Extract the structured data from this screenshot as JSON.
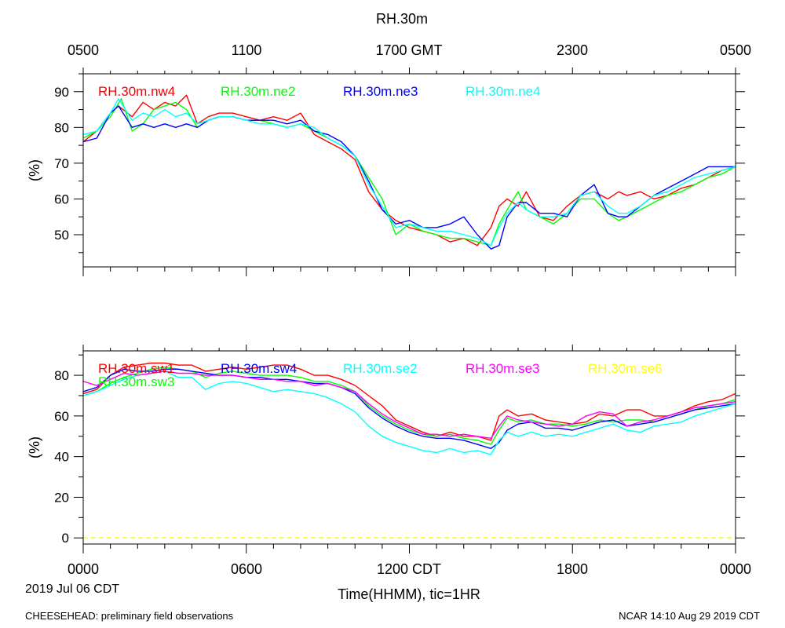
{
  "figure": {
    "title": "RH.30m",
    "bottom_axis_title": "Time(HHMM), tic=1HR",
    "date_label": "2019 Jul 06 CDT",
    "footer_left": "CHEESEHEAD: preliminary field observations",
    "footer_right": "NCAR 14:10 Aug 29 2019 CDT",
    "top_ticks": [
      "0500",
      "1100",
      "1700 GMT",
      "2300",
      "0500"
    ],
    "bottom_ticks": [
      "0000",
      "0600",
      "1200 CDT",
      "1800",
      "0000"
    ]
  },
  "chart_data": [
    {
      "type": "line",
      "title": "RH.30m",
      "ylabel": "(%)",
      "xlabel": "Time(HHMM), tic=1HR",
      "xlim": [
        0,
        24
      ],
      "ylim": [
        41,
        95
      ],
      "yticks": [
        50,
        60,
        70,
        80,
        90
      ],
      "series": [
        {
          "name": "RH.30m.nw4",
          "color": "#ff0000",
          "x": [
            0,
            0.5,
            1,
            1.3,
            1.8,
            2.2,
            2.6,
            3,
            3.4,
            3.8,
            4.2,
            4.6,
            5,
            5.5,
            6,
            6.5,
            7,
            7.5,
            8,
            8.5,
            9,
            9.5,
            10,
            10.5,
            11,
            11.5,
            12,
            12.5,
            13,
            13.5,
            14,
            14.5,
            15,
            15.3,
            15.6,
            16,
            16.3,
            16.8,
            17.3,
            17.8,
            18.3,
            18.8,
            19.3,
            19.7,
            20,
            20.5,
            21,
            21.5,
            22,
            22.5,
            23,
            23.5,
            24
          ],
          "values": [
            76,
            79,
            84,
            86,
            83,
            87,
            85,
            87,
            86,
            89,
            81,
            83,
            84,
            84,
            83,
            82,
            83,
            82,
            84,
            78,
            76,
            74,
            71,
            62,
            57,
            54,
            52,
            51,
            50,
            48,
            49,
            47,
            52,
            58,
            60,
            58,
            62,
            55,
            54,
            58,
            61,
            62,
            60,
            62,
            61,
            62,
            60,
            61,
            63,
            64,
            66,
            68,
            69
          ]
        },
        {
          "name": "RH.30m.ne2",
          "color": "#00ff00",
          "x": [
            0,
            0.5,
            1,
            1.4,
            1.8,
            2.2,
            2.6,
            3,
            3.4,
            3.8,
            4.2,
            4.6,
            5,
            5.5,
            6,
            6.5,
            7,
            7.5,
            8,
            8.5,
            9,
            9.5,
            10,
            10.5,
            11,
            11.5,
            12,
            12.5,
            13,
            13.5,
            14,
            14.5,
            15,
            15.3,
            15.6,
            16,
            16.3,
            16.8,
            17.3,
            17.8,
            18.3,
            18.8,
            19.3,
            19.7,
            20,
            20.5,
            21,
            21.5,
            22,
            22.5,
            23,
            23.5,
            24
          ],
          "values": [
            77,
            79,
            83,
            88,
            79,
            81,
            85,
            86,
            87,
            85,
            80,
            82,
            83,
            83,
            82,
            82,
            81,
            80,
            81,
            79,
            77,
            75,
            72,
            66,
            60,
            50,
            53,
            51,
            50,
            49,
            49,
            48,
            47,
            53,
            57,
            62,
            57,
            55,
            53,
            56,
            60,
            60,
            56,
            54,
            55,
            57,
            59,
            61,
            62,
            64,
            66,
            67,
            69
          ]
        },
        {
          "name": "RH.30m.ne3",
          "color": "#0000ff",
          "x": [
            0,
            0.5,
            1,
            1.3,
            1.8,
            2.2,
            2.6,
            3,
            3.4,
            3.8,
            4.2,
            4.6,
            5,
            5.5,
            6,
            6.5,
            7,
            7.5,
            8,
            8.5,
            9,
            9.5,
            10,
            10.5,
            11,
            11.5,
            12,
            12.5,
            13,
            13.5,
            14,
            14.5,
            15,
            15.3,
            15.6,
            16,
            16.3,
            16.8,
            17.3,
            17.8,
            18.3,
            18.8,
            19.3,
            19.7,
            20,
            20.5,
            21,
            21.5,
            22,
            22.5,
            23,
            23.5,
            24
          ],
          "values": [
            76,
            77,
            84,
            86,
            80,
            81,
            80,
            81,
            80,
            81,
            80,
            82,
            83,
            83,
            82,
            82,
            82,
            81,
            82,
            79,
            78,
            76,
            72,
            65,
            57,
            53,
            54,
            52,
            52,
            53,
            55,
            50,
            46,
            47,
            55,
            59,
            59,
            56,
            56,
            55,
            61,
            64,
            56,
            55,
            55,
            58,
            61,
            63,
            65,
            67,
            69,
            69,
            69
          ]
        },
        {
          "name": "RH.30m.ne4",
          "color": "#00ffff",
          "x": [
            0,
            0.5,
            1,
            1.3,
            1.8,
            2.2,
            2.6,
            3,
            3.4,
            3.8,
            4.2,
            4.6,
            5,
            5.5,
            6,
            6.5,
            7,
            7.5,
            8,
            8.5,
            9,
            9.5,
            10,
            10.5,
            11,
            11.5,
            12,
            12.5,
            13,
            13.5,
            14,
            14.5,
            15,
            15.3,
            15.6,
            16,
            16.3,
            16.8,
            17.3,
            17.8,
            18.3,
            18.8,
            19.3,
            19.7,
            20,
            20.5,
            21,
            21.5,
            22,
            22.5,
            23,
            23.5,
            24
          ],
          "values": [
            78,
            79,
            84,
            88,
            82,
            84,
            83,
            85,
            83,
            84,
            81,
            82,
            83,
            83,
            82,
            81,
            81,
            80,
            81,
            80,
            77,
            75,
            72,
            64,
            58,
            52,
            53,
            52,
            51,
            51,
            50,
            49,
            47,
            52,
            56,
            59,
            57,
            55,
            55,
            56,
            61,
            62,
            58,
            56,
            56,
            58,
            61,
            62,
            64,
            66,
            67,
            68,
            69
          ]
        }
      ]
    },
    {
      "type": "line",
      "ylabel": "(%)",
      "xlabel": "Time(HHMM), tic=1HR",
      "xlim": [
        0,
        24
      ],
      "ylim": [
        -3,
        92
      ],
      "yticks": [
        0,
        20,
        40,
        60,
        80
      ],
      "series": [
        {
          "name": "RH.30m.sw1",
          "color": "#ff0000",
          "x": [
            0,
            0.5,
            1,
            1.5,
            2,
            2.5,
            3,
            3.5,
            4,
            4.5,
            5,
            5.5,
            6,
            6.5,
            7,
            7.5,
            8,
            8.5,
            9,
            9.5,
            10,
            10.5,
            11,
            11.5,
            12,
            12.5,
            13,
            13.5,
            14,
            14.5,
            15,
            15.3,
            15.6,
            16,
            16.5,
            17,
            17.5,
            18,
            18.5,
            19,
            19.5,
            20,
            20.5,
            21,
            21.5,
            22,
            22.5,
            23,
            23.5,
            24
          ],
          "values": [
            71,
            73,
            80,
            84,
            85,
            86,
            86,
            85,
            85,
            82,
            83,
            84,
            83,
            84,
            85,
            85,
            83,
            80,
            80,
            78,
            75,
            70,
            65,
            58,
            55,
            52,
            50,
            52,
            50,
            50,
            48,
            60,
            63,
            60,
            61,
            58,
            57,
            56,
            57,
            61,
            60,
            63,
            63,
            60,
            60,
            62,
            65,
            67,
            68,
            71
          ]
        },
        {
          "name": "RH.30m.sw3",
          "color": "#00ff00",
          "x": [
            0,
            0.5,
            1,
            1.5,
            2,
            2.5,
            3,
            3.5,
            4,
            4.5,
            5,
            5.5,
            6,
            6.5,
            7,
            7.5,
            8,
            8.5,
            9,
            9.5,
            10,
            10.5,
            11,
            11.5,
            12,
            12.5,
            13,
            13.5,
            14,
            14.5,
            15,
            15.3,
            15.6,
            16,
            16.5,
            17,
            17.5,
            18,
            18.5,
            19,
            19.5,
            20,
            20.5,
            21,
            21.5,
            22,
            22.5,
            23,
            23.5,
            24
          ],
          "values": [
            70,
            72,
            76,
            79,
            81,
            83,
            84,
            83,
            82,
            79,
            81,
            82,
            81,
            80,
            80,
            80,
            79,
            77,
            77,
            75,
            72,
            65,
            60,
            56,
            53,
            51,
            50,
            51,
            49,
            48,
            46,
            53,
            59,
            57,
            58,
            56,
            56,
            55,
            56,
            58,
            57,
            58,
            58,
            57,
            59,
            61,
            63,
            65,
            66,
            68
          ]
        },
        {
          "name": "RH.30m.sw4",
          "color": "#0000ff",
          "x": [
            0,
            0.5,
            1,
            1.5,
            2,
            2.5,
            3,
            3.5,
            4,
            4.5,
            5,
            5.5,
            6,
            6.5,
            7,
            7.5,
            8,
            8.5,
            9,
            9.5,
            10,
            10.5,
            11,
            11.5,
            12,
            12.5,
            13,
            13.5,
            14,
            14.5,
            15,
            15.3,
            15.6,
            16,
            16.5,
            17,
            17.5,
            18,
            18.5,
            19,
            19.5,
            20,
            20.5,
            21,
            21.5,
            22,
            22.5,
            23,
            23.5,
            24
          ],
          "values": [
            72,
            74,
            80,
            83,
            82,
            82,
            83,
            83,
            82,
            81,
            80,
            80,
            79,
            79,
            78,
            78,
            77,
            76,
            76,
            74,
            71,
            64,
            59,
            55,
            52,
            50,
            49,
            49,
            48,
            46,
            44,
            47,
            53,
            56,
            57,
            54,
            54,
            53,
            55,
            57,
            58,
            55,
            56,
            57,
            59,
            61,
            63,
            64,
            65,
            66
          ]
        },
        {
          "name": "RH.30m.se2",
          "color": "#00ffff",
          "x": [
            0,
            0.5,
            1,
            1.5,
            2,
            2.5,
            3,
            3.5,
            4,
            4.5,
            5,
            5.5,
            6,
            6.5,
            7,
            7.5,
            8,
            8.5,
            9,
            9.5,
            10,
            10.5,
            11,
            11.5,
            12,
            12.5,
            13,
            13.5,
            14,
            14.5,
            15,
            15.3,
            15.6,
            16,
            16.5,
            17,
            17.5,
            18,
            18.5,
            19,
            19.5,
            20,
            20.5,
            21,
            21.5,
            22,
            22.5,
            23,
            23.5,
            24
          ],
          "values": [
            70,
            72,
            75,
            78,
            80,
            81,
            82,
            79,
            79,
            73,
            76,
            77,
            76,
            74,
            72,
            73,
            72,
            71,
            69,
            66,
            62,
            55,
            50,
            47,
            45,
            43,
            42,
            44,
            42,
            43,
            41,
            48,
            52,
            50,
            52,
            50,
            51,
            50,
            52,
            54,
            56,
            53,
            52,
            55,
            56,
            57,
            60,
            62,
            64,
            66
          ]
        },
        {
          "name": "RH.30m.se3",
          "color": "#ff00ff",
          "x": [
            0,
            0.5,
            1,
            1.5,
            2,
            2.5,
            3,
            3.5,
            4,
            4.5,
            5,
            5.5,
            6,
            6.5,
            7,
            7.5,
            8,
            8.5,
            9,
            9.5,
            10,
            10.5,
            11,
            11.5,
            12,
            12.5,
            13,
            13.5,
            14,
            14.5,
            15,
            15.3,
            15.6,
            16,
            16.5,
            17,
            17.5,
            18,
            18.5,
            19,
            19.5,
            20,
            20.5,
            21,
            21.5,
            22,
            22.5,
            23,
            23.5,
            24
          ],
          "values": [
            77,
            75,
            78,
            81,
            80,
            81,
            82,
            81,
            81,
            80,
            80,
            80,
            79,
            78,
            78,
            77,
            77,
            75,
            76,
            74,
            72,
            66,
            61,
            57,
            54,
            51,
            51,
            50,
            51,
            50,
            49,
            55,
            60,
            58,
            57,
            56,
            55,
            56,
            60,
            62,
            61,
            55,
            57,
            58,
            60,
            62,
            64,
            65,
            66,
            67
          ]
        },
        {
          "name": "RH.30m.se6",
          "color": "#ffff00",
          "x": [
            0,
            24
          ],
          "values": [
            0,
            0
          ]
        }
      ]
    }
  ]
}
